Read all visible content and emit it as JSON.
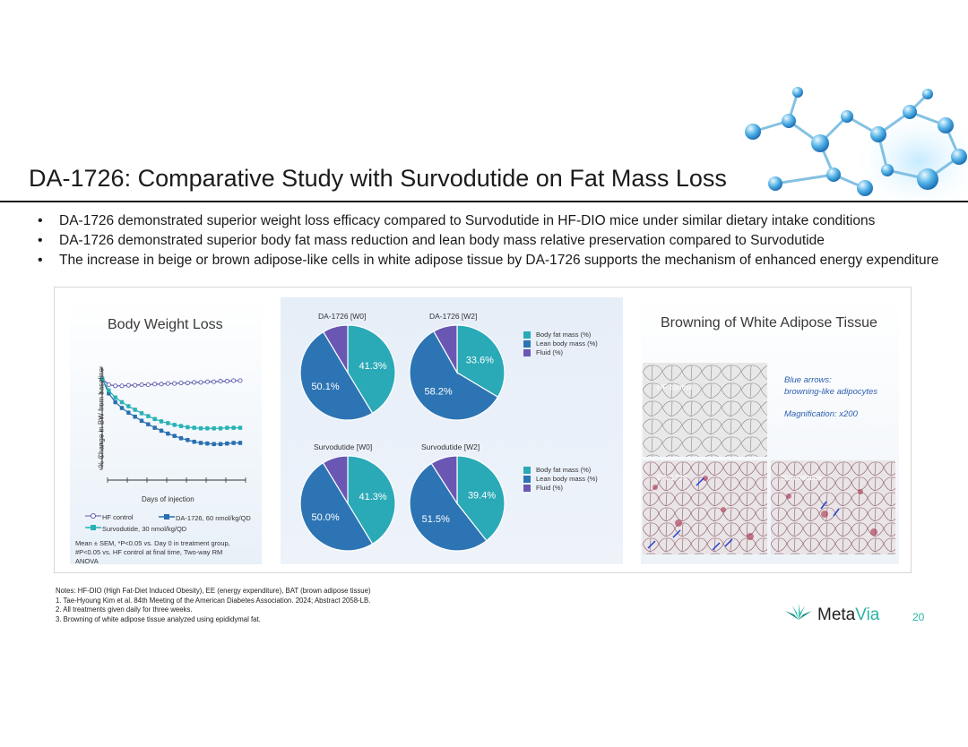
{
  "slide": {
    "title": "DA-1726: Comparative Study with Survodutide on Fat Mass Loss",
    "bullets": [
      "DA-1726 demonstrated superior weight loss efficacy compared to Survodutide in HF-DIO mice under similar dietary intake conditions",
      "DA-1726 demonstrated superior body fat mass reduction and lean body mass relative preservation compared to Survodutide",
      "The increase in beige or brown adipose-like cells in white adipose tissue by DA-1726 supports the mechanism of enhanced energy expenditure"
    ]
  },
  "body_weight": {
    "title": "Body Weight Loss",
    "ylabel": "% Change in BW from baseline",
    "xlabel": "Days of injection",
    "legend": {
      "hf": "HF control",
      "da": "DA-1726, 60 nmol/kg/QD",
      "sv": "Survodutide, 30 nmol/kg/QD"
    },
    "footnote": [
      "Mean ± SEM, *P<0.05 vs. Day 0 in treatment group,",
      "#P<0.05 vs. HF control at final time, Two-way RM",
      "ANOVA"
    ]
  },
  "chart_data": {
    "type": "line",
    "x": [
      0,
      1,
      2,
      3,
      4,
      5,
      6,
      7,
      8,
      9,
      10,
      11,
      12,
      13,
      14,
      15,
      16,
      17,
      18,
      19,
      20,
      21
    ],
    "series": [
      {
        "name": "HF control",
        "values": [
          0,
          -1.0,
          -1.2,
          -1.2,
          -1.1,
          -1.1,
          -1.0,
          -1.0,
          -0.9,
          -0.9,
          -0.8,
          -0.8,
          -0.7,
          -0.7,
          -0.6,
          -0.6,
          -0.5,
          -0.5,
          -0.4,
          -0.4,
          -0.3,
          -0.3
        ]
      },
      {
        "name": "DA-1726, 60 nmol/kg/QD",
        "values": [
          0,
          -2.5,
          -4.0,
          -5.0,
          -5.8,
          -6.5,
          -7.2,
          -7.8,
          -8.4,
          -8.9,
          -9.4,
          -9.8,
          -10.2,
          -10.5,
          -10.8,
          -11.0,
          -11.1,
          -11.2,
          -11.2,
          -11.1,
          -11.0,
          -11.0
        ]
      },
      {
        "name": "Survodutide, 30 nmol/kg/QD",
        "values": [
          0,
          -2.0,
          -3.2,
          -4.0,
          -4.7,
          -5.3,
          -5.9,
          -6.4,
          -6.9,
          -7.3,
          -7.6,
          -7.9,
          -8.1,
          -8.3,
          -8.4,
          -8.5,
          -8.5,
          -8.5,
          -8.5,
          -8.4,
          -8.4,
          -8.4
        ]
      }
    ],
    "colors": {
      "hf": "#5a5aa8",
      "da": "#2a6fb0",
      "sv": "#29b2b5"
    }
  },
  "pies": {
    "legend": {
      "fat": "Body fat mass (%)",
      "lean": "Lean body mass (%)",
      "fluid": "Fluid (%)"
    },
    "colors": {
      "fat": "#2aa9b7",
      "lean": "#2d74b4",
      "fluid": "#6a57b3"
    },
    "charts": [
      {
        "title": "DA-1726 [W0]",
        "fat": 41.3,
        "lean": 50.1,
        "fat_label": "41.3%",
        "lean_label": "50.1%"
      },
      {
        "title": "DA-1726 [W2]",
        "fat": 33.6,
        "lean": 58.2,
        "fat_label": "33.6%",
        "lean_label": "58.2%"
      },
      {
        "title": "Survodutide  [W0]",
        "fat": 41.3,
        "lean": 50.0,
        "fat_label": "41.3%",
        "lean_label": "50.0%"
      },
      {
        "title": "Survodutide  [W2]",
        "fat": 39.4,
        "lean": 51.5,
        "fat_label": "39.4%",
        "lean_label": "51.5%"
      }
    ]
  },
  "browning": {
    "title": "Browning of White Adipose Tissue",
    "note_line1": "Blue arrows:",
    "note_line2": "browning-like adipocytes",
    "magnification": "Magnification: x200",
    "labels": {
      "hf": "HF control",
      "da": "DA-1726",
      "sv": "Survodutide"
    }
  },
  "notes": [
    "Notes: HF-DIO (High Fat-Diet Induced Obesity), EE (energy expenditure), BAT (brown adipose tissue)",
    "1.  Tae-Hyoung Kim et al. 84th Meeting of the American Diabetes Association. 2024; Abstract 2058-LB.",
    "2. All treatments given daily for three weeks.",
    "3. Browning of white adipose tissue analyzed using epididymal fat."
  ],
  "brand": {
    "meta": "Meta",
    "via": "Via",
    "color": "#2bb3a6"
  },
  "page_number": "20"
}
